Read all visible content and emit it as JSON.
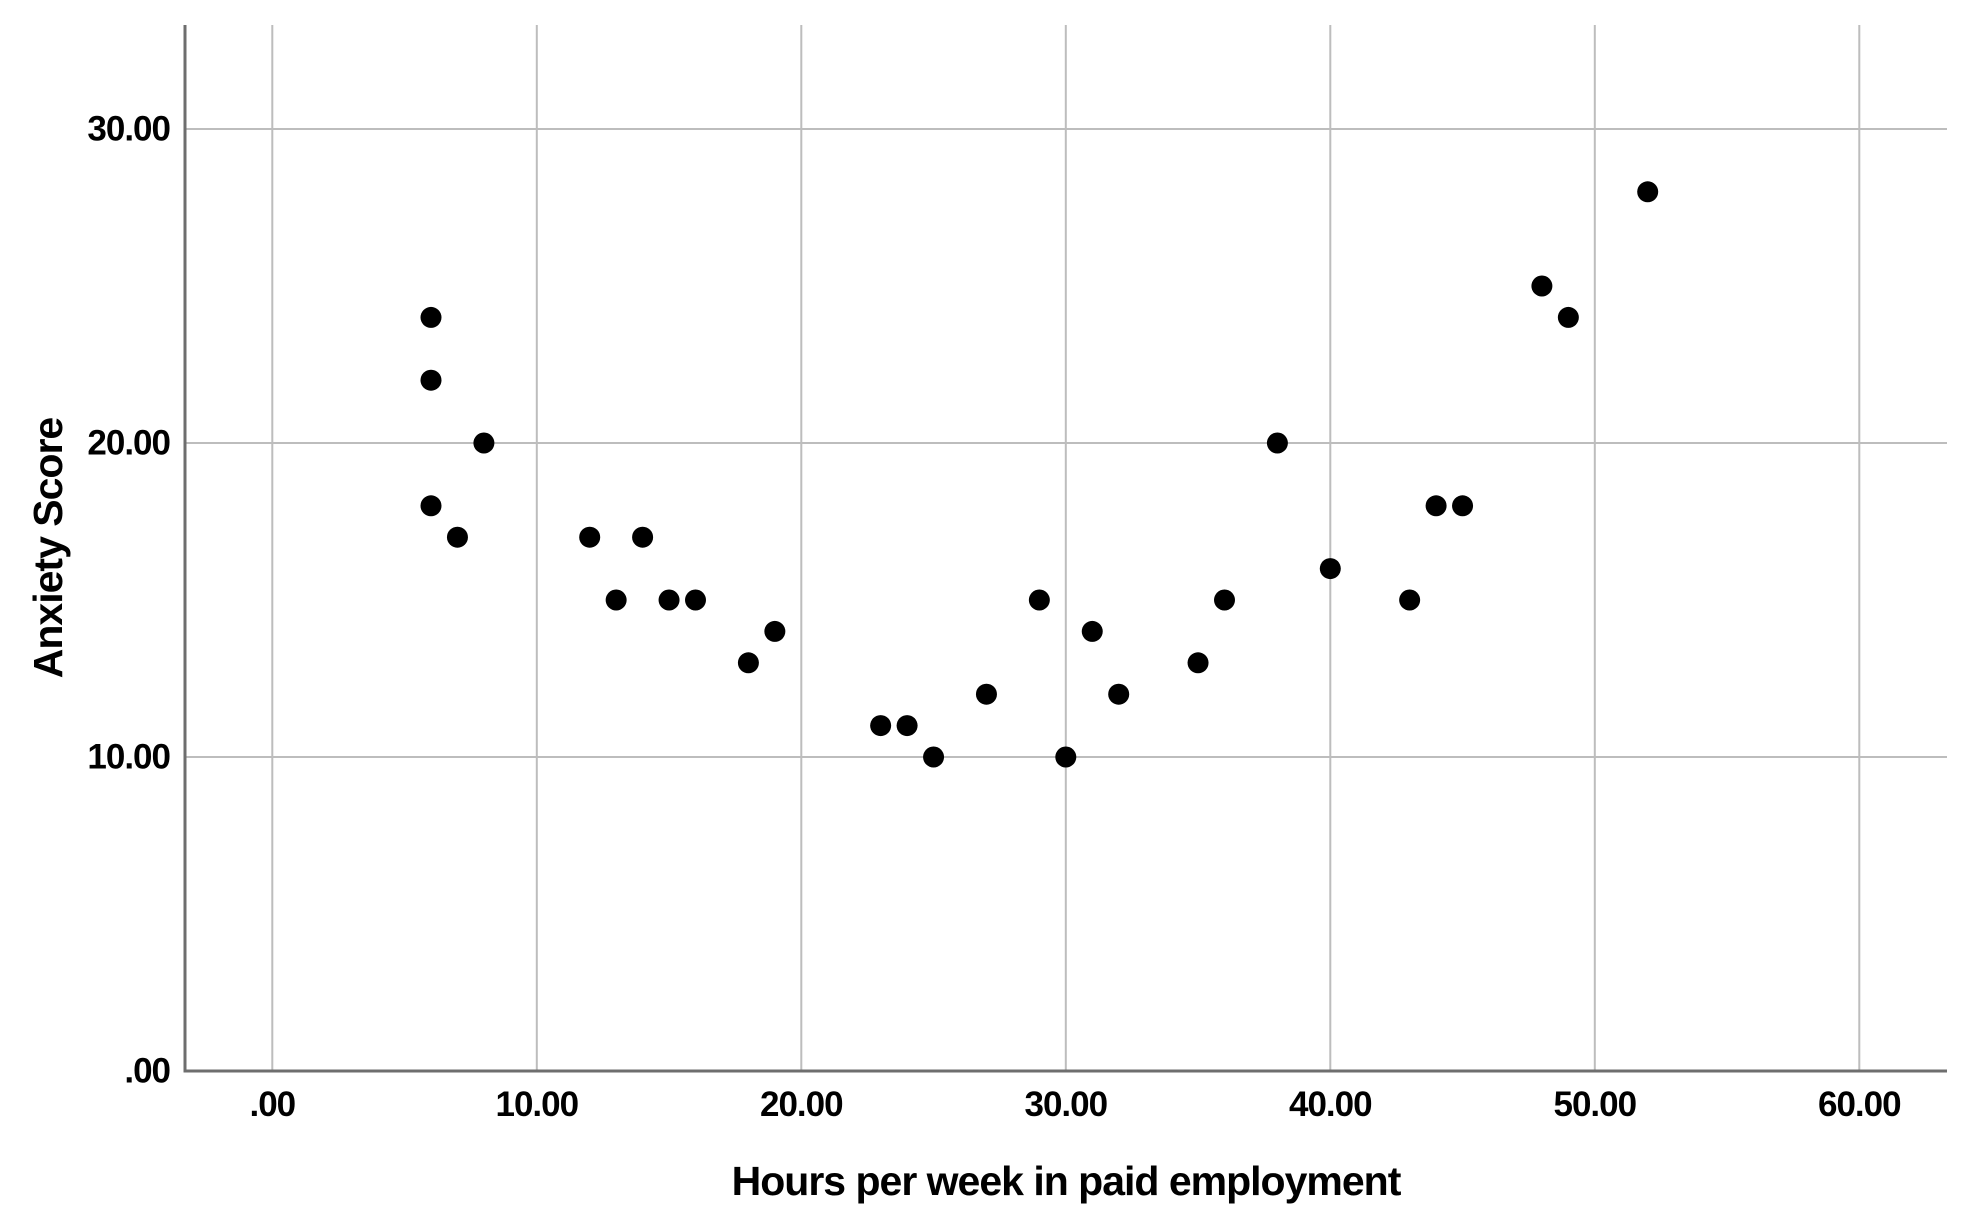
{
  "figure": {
    "background": "#ffffff"
  },
  "chart_data": {
    "type": "scatter",
    "title": "",
    "xlabel": "Hours per week in paid employment",
    "ylabel": "Anxiety Score",
    "grid": true,
    "legend_position": "none",
    "xlim": [
      -3.3,
      63.3
    ],
    "ylim": [
      0,
      33.3
    ],
    "x_ticks": [
      {
        "v": 0,
        "label": ".00"
      },
      {
        "v": 10,
        "label": "10.00"
      },
      {
        "v": 20,
        "label": "20.00"
      },
      {
        "v": 30,
        "label": "30.00"
      },
      {
        "v": 40,
        "label": "40.00"
      },
      {
        "v": 50,
        "label": "50.00"
      },
      {
        "v": 60,
        "label": "60.00"
      }
    ],
    "y_ticks": [
      {
        "v": 0,
        "label": ".00"
      },
      {
        "v": 10,
        "label": "10.00"
      },
      {
        "v": 20,
        "label": "20.00"
      },
      {
        "v": 30,
        "label": "30.00"
      }
    ],
    "points": [
      {
        "x": 6,
        "y": 24
      },
      {
        "x": 6,
        "y": 22
      },
      {
        "x": 6,
        "y": 18
      },
      {
        "x": 7,
        "y": 17
      },
      {
        "x": 8,
        "y": 20
      },
      {
        "x": 12,
        "y": 17
      },
      {
        "x": 13,
        "y": 15
      },
      {
        "x": 14,
        "y": 17
      },
      {
        "x": 15,
        "y": 15
      },
      {
        "x": 16,
        "y": 15
      },
      {
        "x": 18,
        "y": 13
      },
      {
        "x": 19,
        "y": 14
      },
      {
        "x": 23,
        "y": 11
      },
      {
        "x": 24,
        "y": 11
      },
      {
        "x": 25,
        "y": 10
      },
      {
        "x": 27,
        "y": 12
      },
      {
        "x": 29,
        "y": 15
      },
      {
        "x": 30,
        "y": 10
      },
      {
        "x": 31,
        "y": 14
      },
      {
        "x": 32,
        "y": 12
      },
      {
        "x": 35,
        "y": 13
      },
      {
        "x": 36,
        "y": 15
      },
      {
        "x": 38,
        "y": 20
      },
      {
        "x": 40,
        "y": 16
      },
      {
        "x": 43,
        "y": 15
      },
      {
        "x": 44,
        "y": 18
      },
      {
        "x": 45,
        "y": 18
      },
      {
        "x": 48,
        "y": 25
      },
      {
        "x": 49,
        "y": 24
      },
      {
        "x": 52,
        "y": 28
      }
    ],
    "colors": {
      "marker": "#000000",
      "gridline": "#bdbdbd",
      "axis": "#6e6e6e",
      "text": "#000000"
    }
  }
}
